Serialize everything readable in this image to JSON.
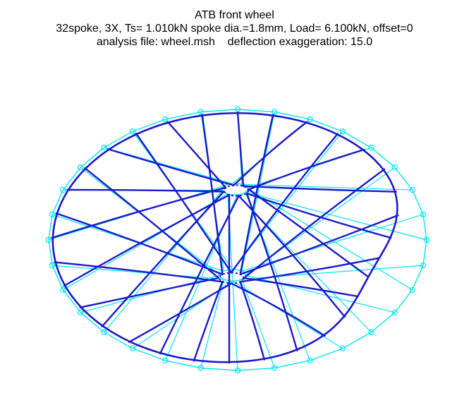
{
  "figure": {
    "title": "ATB front wheel",
    "subtitle": "32spoke, 3X, Ts= 1.010kN spoke dia.=1.8mm, Load= 6.100kN, offset=0",
    "caption": "analysis file: wheel.msh    deflection exaggeration: 15.0"
  },
  "colors": {
    "undeformed": "#00e5ee",
    "deformed": "#1a1acc",
    "text": "#000000",
    "background": "#ffffff"
  },
  "model": {
    "spoke_count": 32,
    "lacing_cross": 3,
    "spoke_tension_kN": 1.01,
    "spoke_diameter_mm": 1.8,
    "load_kN": 6.1,
    "offset": 0,
    "deflection_exaggeration": 15.0
  }
}
